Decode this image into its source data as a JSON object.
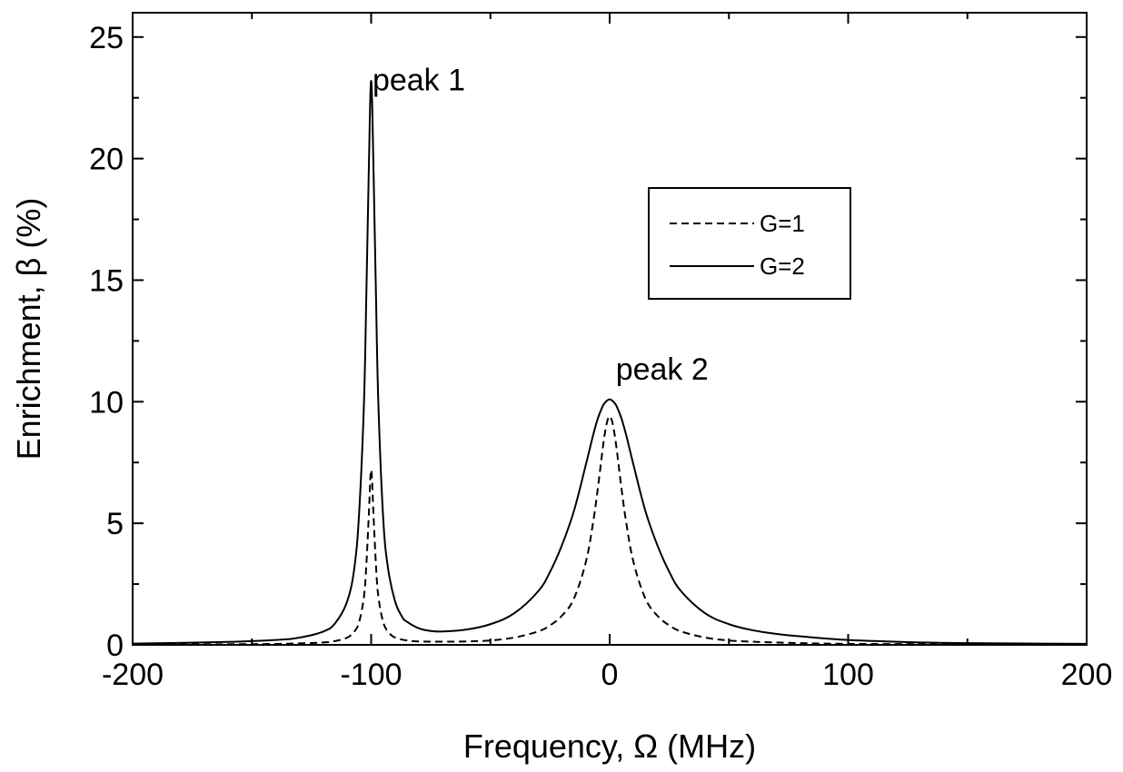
{
  "chart_data": {
    "type": "line",
    "title": "",
    "xlabel": "Frequency, Ω (MHz)",
    "ylabel": "Enrichment, β (%)",
    "xlim": [
      -200,
      200
    ],
    "ylim": [
      0,
      26
    ],
    "xticks": [
      -200,
      -100,
      0,
      100,
      200
    ],
    "yticks": [
      0,
      5,
      10,
      15,
      20,
      25
    ],
    "x_minor_step": 50,
    "y_minor_step": 2.5,
    "grid": false,
    "legend_position": "upper-right",
    "annotations": [
      {
        "text": "peak 1",
        "x": -80,
        "y": 22.8
      },
      {
        "text": "peak 2",
        "x": 22,
        "y": 10.9
      }
    ],
    "series": [
      {
        "name": "G=1",
        "style": "dashed",
        "color": "#000000",
        "x": [
          -200,
          -150,
          -130,
          -120,
          -115,
          -110,
          -107,
          -105,
          -103,
          -102,
          -101,
          -100,
          -99,
          -98,
          -97,
          -95,
          -93,
          -90,
          -85,
          -80,
          -70,
          -60,
          -50,
          -40,
          -30,
          -25,
          -20,
          -15,
          -10,
          -7,
          -5,
          -3,
          -2,
          -1,
          0,
          1,
          2,
          3,
          5,
          7,
          10,
          15,
          20,
          25,
          30,
          40,
          50,
          60,
          80,
          100,
          130,
          150,
          200
        ],
        "y": [
          0.02,
          0.03,
          0.06,
          0.1,
          0.16,
          0.3,
          0.55,
          0.95,
          2.0,
          3.3,
          5.3,
          7.2,
          5.3,
          3.3,
          2.0,
          0.95,
          0.55,
          0.3,
          0.18,
          0.14,
          0.13,
          0.14,
          0.18,
          0.3,
          0.55,
          0.8,
          1.2,
          1.9,
          3.4,
          5.0,
          6.4,
          8.0,
          8.7,
          9.2,
          9.4,
          9.2,
          8.7,
          8.0,
          6.4,
          5.0,
          3.4,
          1.9,
          1.2,
          0.8,
          0.55,
          0.3,
          0.18,
          0.13,
          0.07,
          0.04,
          0.03,
          0.02,
          0.01
        ]
      },
      {
        "name": "G=2",
        "style": "solid",
        "color": "#000000",
        "x": [
          -200,
          -160,
          -140,
          -130,
          -120,
          -115,
          -110,
          -107,
          -105,
          -103,
          -102,
          -101,
          -100,
          -99,
          -98,
          -97,
          -95,
          -93,
          -90,
          -87,
          -85,
          -80,
          -75,
          -70,
          -60,
          -50,
          -40,
          -30,
          -25,
          -20,
          -15,
          -10,
          -7,
          -5,
          -3,
          -2,
          -1,
          0,
          1,
          2,
          3,
          5,
          7,
          10,
          15,
          20,
          25,
          30,
          40,
          50,
          60,
          70,
          80,
          100,
          130,
          150,
          200
        ],
        "y": [
          0.05,
          0.12,
          0.2,
          0.3,
          0.55,
          0.9,
          1.8,
          3.2,
          5.5,
          10.0,
          14.5,
          19.5,
          23.2,
          19.5,
          14.5,
          10.0,
          5.3,
          3.2,
          1.8,
          1.15,
          0.95,
          0.68,
          0.57,
          0.55,
          0.63,
          0.85,
          1.3,
          2.2,
          3.0,
          4.1,
          5.5,
          7.4,
          8.6,
          9.3,
          9.8,
          9.95,
          10.05,
          10.1,
          10.05,
          9.95,
          9.8,
          9.3,
          8.6,
          7.4,
          5.5,
          4.1,
          3.0,
          2.2,
          1.3,
          0.85,
          0.6,
          0.45,
          0.35,
          0.2,
          0.1,
          0.07,
          0.04
        ]
      }
    ]
  }
}
